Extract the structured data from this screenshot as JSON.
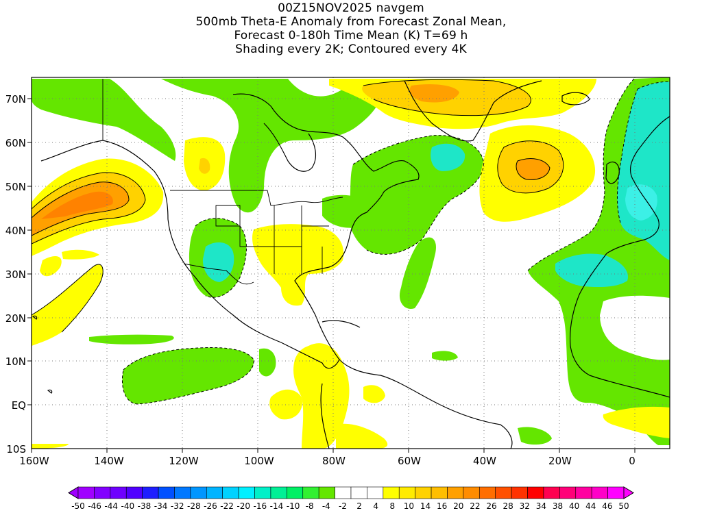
{
  "header": {
    "run": "00Z15NOV2025 navgem",
    "field": "500mb Theta-E Anomaly from Forecast Zonal Mean,",
    "period": "Forecast 0-180h Time Mean (K) T=69 h",
    "shading": "Shading every 2K; Contoured every 4K"
  },
  "axes": {
    "lat_labels": [
      "70N",
      "60N",
      "50N",
      "40N",
      "30N",
      "20N",
      "10N",
      "EQ",
      "10S"
    ],
    "lon_labels": [
      "160W",
      "140W",
      "120W",
      "100W",
      "80W",
      "60W",
      "40W",
      "20W",
      "0"
    ]
  },
  "colorbar": {
    "labels": [
      "-50",
      "-46",
      "-44",
      "-40",
      "-38",
      "-34",
      "-32",
      "-28",
      "-26",
      "-22",
      "-20",
      "-16",
      "-14",
      "-10",
      "-8",
      "-4",
      "-2",
      "2",
      "4",
      "8",
      "10",
      "14",
      "16",
      "20",
      "22",
      "26",
      "28",
      "32",
      "34",
      "38",
      "40",
      "44",
      "46",
      "50"
    ],
    "colors": [
      "#a000ff",
      "#8200ff",
      "#6e00ff",
      "#5000ff",
      "#1e1eff",
      "#0050ff",
      "#0078ff",
      "#0096ff",
      "#00b4ff",
      "#00d2ff",
      "#00f0ff",
      "#00f0c8",
      "#00f096",
      "#00f064",
      "#32f032",
      "#64e600",
      "#ffffff",
      "#ffffff",
      "#ffffff",
      "#ffff00",
      "#ffeb00",
      "#ffd200",
      "#ffbe00",
      "#ffa000",
      "#ff8c00",
      "#ff6e00",
      "#ff5000",
      "#ff3200",
      "#ff0000",
      "#ff0050",
      "#ff0078",
      "#ff00a0",
      "#ff00c8",
      "#ff00ff"
    ]
  },
  "palette": {
    "green": "#64e600",
    "cyan": "#1ee6c8",
    "cyan_light": "#3cf0e6",
    "yellow": "#ffff00",
    "gold": "#ffd200",
    "orange": "#ffa000",
    "deep_orange": "#ff8200"
  }
}
